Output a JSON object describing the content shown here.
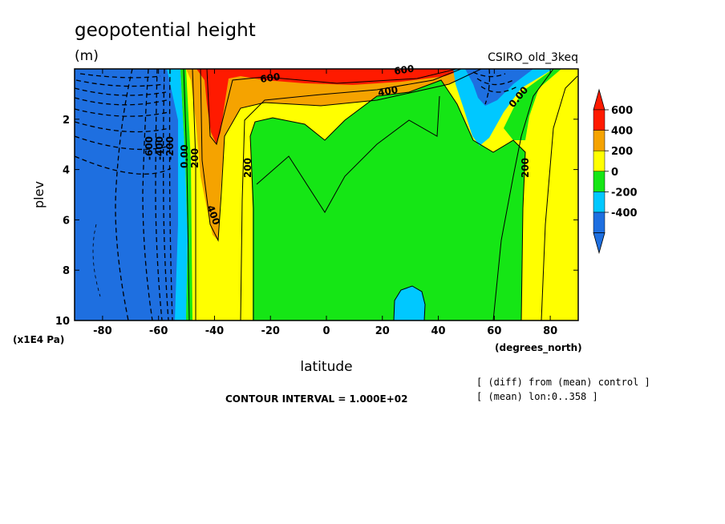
{
  "chart_data": {
    "type": "heatmap",
    "subtype": "filled-contour",
    "title": "geopotential height",
    "units": "(m)",
    "model": "CSIRO_old_3keq",
    "xlabel": "latitude",
    "xunits": "(degrees_north)",
    "ylabel": "plev",
    "yunits": "(x1E4 Pa)",
    "xlim": [
      -90,
      90
    ],
    "ylim": [
      10,
      0
    ],
    "x_ticks": [
      -80,
      -60,
      -40,
      -20,
      0,
      20,
      40,
      60,
      80
    ],
    "x_tick_labels": [
      "-80",
      "-60",
      "-40",
      "-20",
      "0",
      "20",
      "40",
      "60",
      "80"
    ],
    "y_ticks": [
      2,
      4,
      6,
      8,
      10
    ],
    "y_tick_labels": [
      "2",
      "4",
      "6",
      "8",
      "10"
    ],
    "contour_interval_text": "CONTOUR INTERVAL = 1.000E+02",
    "notes": [
      "[ (diff) from (mean) control ]",
      "[ (mean) lon:0..358 ]"
    ],
    "colorbar": {
      "levels": [
        -400,
        -200,
        0,
        200,
        400,
        600
      ],
      "labels": [
        "600",
        "400",
        "200",
        "0",
        "-200",
        "-400"
      ],
      "colors": [
        "#1e6fe0",
        "#00c8ff",
        "#15e615",
        "#ffff00",
        "#f5a300",
        "#ff1a00"
      ],
      "arrow_top_color": "#ff1a00",
      "arrow_bottom_color": "#1e6fe0"
    },
    "contour_labels": [
      "600",
      "600",
      "400",
      "0.00",
      "-600",
      "-400",
      "-200",
      "0.00",
      "200",
      "400",
      "200",
      "200"
    ],
    "grid": false
  }
}
